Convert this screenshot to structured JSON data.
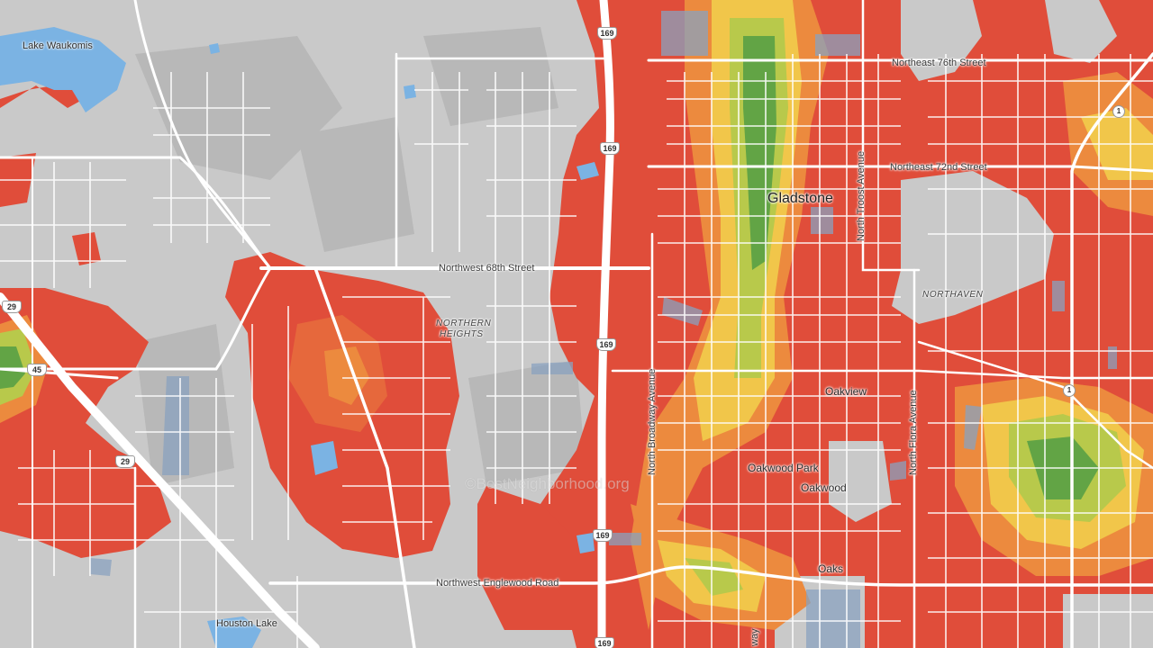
{
  "map": {
    "watermark": "©BestNeighborhood.org",
    "colors": {
      "base": "#c9c9c9",
      "road": "#ffffff",
      "water": "#7bb3e3",
      "high": "#e04d3a",
      "mid_high": "#ec8a3e",
      "mid": "#f1c64a",
      "mid_low": "#b8c94b",
      "low": "#62a445"
    },
    "labels": {
      "lake_waukomis": "Lake Waukomis",
      "gladstone": "Gladstone",
      "ne_76th": "Northeast 76th Street",
      "ne_72nd": "Northeast 72nd Street",
      "nw_68th": "Northwest 68th Street",
      "n_troost": "North Troost Avenue",
      "northaven": "NORTHAVEN",
      "northern_heights_1": "NORTHERN",
      "northern_heights_2": "HEIGHTS",
      "n_broadway": "North Broadway Avenue",
      "oakview": "Oakview",
      "n_flora": "North Flora Avenue",
      "oakwood_park": "Oakwood Park",
      "oakwood": "Oakwood",
      "oaks": "Oaks",
      "nw_englewood": "Northwest Englewood Road",
      "houston_lake": "Houston Lake",
      "way_fragment": "way"
    },
    "shields": {
      "us169_a": "169",
      "us169_b": "169",
      "us169_c": "169",
      "us169_d": "169",
      "us169_e": "169",
      "i29_a": "29",
      "i29_b": "29",
      "rt45": "45",
      "rt1_a": "1",
      "rt1_b": "1"
    }
  }
}
